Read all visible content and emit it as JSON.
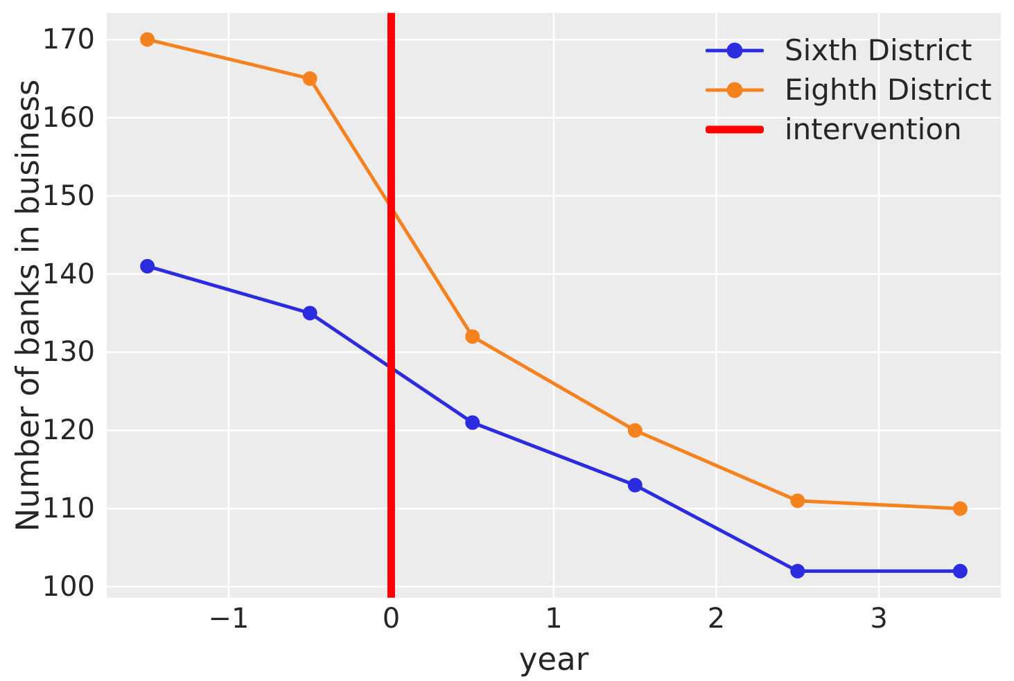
{
  "chart_data": {
    "type": "line",
    "title": "",
    "xlabel": "year",
    "ylabel": "Number of banks in business",
    "x": [
      -1.5,
      -0.5,
      0.5,
      1.5,
      2.5,
      3.5
    ],
    "series": [
      {
        "name": "Sixth District",
        "color": "#2b2be0",
        "values": [
          141,
          135,
          121,
          113,
          102,
          102
        ]
      },
      {
        "name": "Eighth District",
        "color": "#f5821e",
        "values": [
          170,
          165,
          132,
          120,
          111,
          110
        ]
      }
    ],
    "intervention": {
      "label": "intervention",
      "x": 0,
      "color": "#ff0000"
    },
    "xlim": [
      -1.75,
      3.75
    ],
    "ylim": [
      98.6,
      173.4
    ],
    "xticks": [
      -1,
      0,
      1,
      2,
      3
    ],
    "xtick_labels": [
      "−1",
      "0",
      "1",
      "2",
      "3"
    ],
    "yticks": [
      100,
      110,
      120,
      130,
      140,
      150,
      160,
      170
    ],
    "ytick_labels": [
      "100",
      "110",
      "120",
      "130",
      "140",
      "150",
      "160",
      "170"
    ],
    "grid": true,
    "legend_position": "upper right",
    "plot_bg_color": "#ececec",
    "grid_color": "#ffffff",
    "text_color": "#262626"
  },
  "legend": {
    "items": [
      {
        "label": "Sixth District",
        "color": "#2b2be0",
        "marker": true
      },
      {
        "label": "Eighth District",
        "color": "#f5821e",
        "marker": true
      },
      {
        "label": "intervention",
        "color": "#ff0000",
        "marker": false
      }
    ]
  }
}
